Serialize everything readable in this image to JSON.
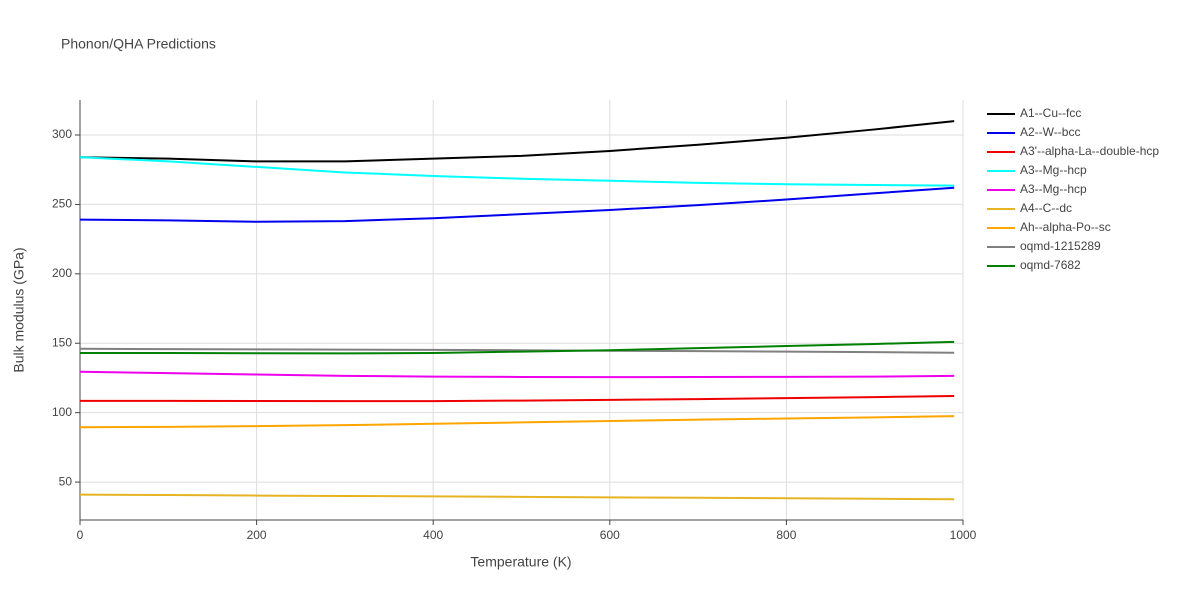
{
  "chart_data": {
    "type": "line",
    "title": "Phonon/QHA Predictions",
    "x_label": "Temperature (K)",
    "y_label": "Bulk modulus (GPa)",
    "x": [
      0,
      100,
      200,
      300,
      400,
      500,
      600,
      700,
      800,
      900,
      990
    ],
    "xlim": [
      0,
      1000
    ],
    "xticks": [
      0,
      200,
      400,
      600,
      800,
      1000
    ],
    "ylim": [
      22.7,
      325.2
    ],
    "yticks": [
      50,
      100,
      150,
      200,
      250,
      300
    ],
    "grid": true,
    "legend": "right",
    "series": [
      {
        "name": "A1--Cu--fcc",
        "color": "#000000",
        "values": [
          284,
          283,
          281,
          281,
          283,
          285,
          288.5,
          293,
          298,
          304,
          310
        ]
      },
      {
        "name": "A2--W--bcc",
        "color": "#0000ee",
        "values": [
          239,
          238.5,
          237.5,
          238,
          240,
          243,
          246,
          249.5,
          253.5,
          258,
          262
        ]
      },
      {
        "name": "A3'--alpha-La--double-hcp",
        "color": "#ee0000",
        "values": [
          108.5,
          108.5,
          108.4,
          108.3,
          108.3,
          108.7,
          109.2,
          109.8,
          110.5,
          111.2,
          112
        ]
      },
      {
        "name": "A3--Mg--hcp",
        "color": "#00ffff",
        "values": [
          284,
          281,
          277,
          273,
          270.5,
          268.5,
          267,
          265.5,
          264.5,
          264,
          263.5
        ]
      },
      {
        "name": "A3--Mg--hcp",
        "color": "#ee00ee",
        "values": [
          129.5,
          128.5,
          127.5,
          126.5,
          126,
          125.7,
          125.6,
          125.7,
          125.8,
          126,
          126.5
        ]
      },
      {
        "name": "A4--C--dc",
        "color": "#e6b422",
        "values": [
          41,
          40.7,
          40.3,
          40,
          39.7,
          39.4,
          39,
          38.7,
          38.4,
          38,
          37.6
        ]
      },
      {
        "name": "Ah--alpha-Po--sc",
        "color": "#ffa500",
        "values": [
          89.5,
          89.8,
          90.3,
          91,
          92,
          93,
          94,
          95,
          95.8,
          96.6,
          97.5
        ]
      },
      {
        "name": "oqmd-1215289",
        "color": "#808080",
        "values": [
          146,
          145.8,
          145.6,
          145.4,
          145.2,
          145,
          144.6,
          144.3,
          144,
          143.6,
          143.2
        ]
      },
      {
        "name": "oqmd-7682",
        "color": "#008000",
        "values": [
          143,
          143,
          142.8,
          142.7,
          143,
          144,
          145,
          146.5,
          148,
          149.5,
          151
        ]
      }
    ]
  }
}
